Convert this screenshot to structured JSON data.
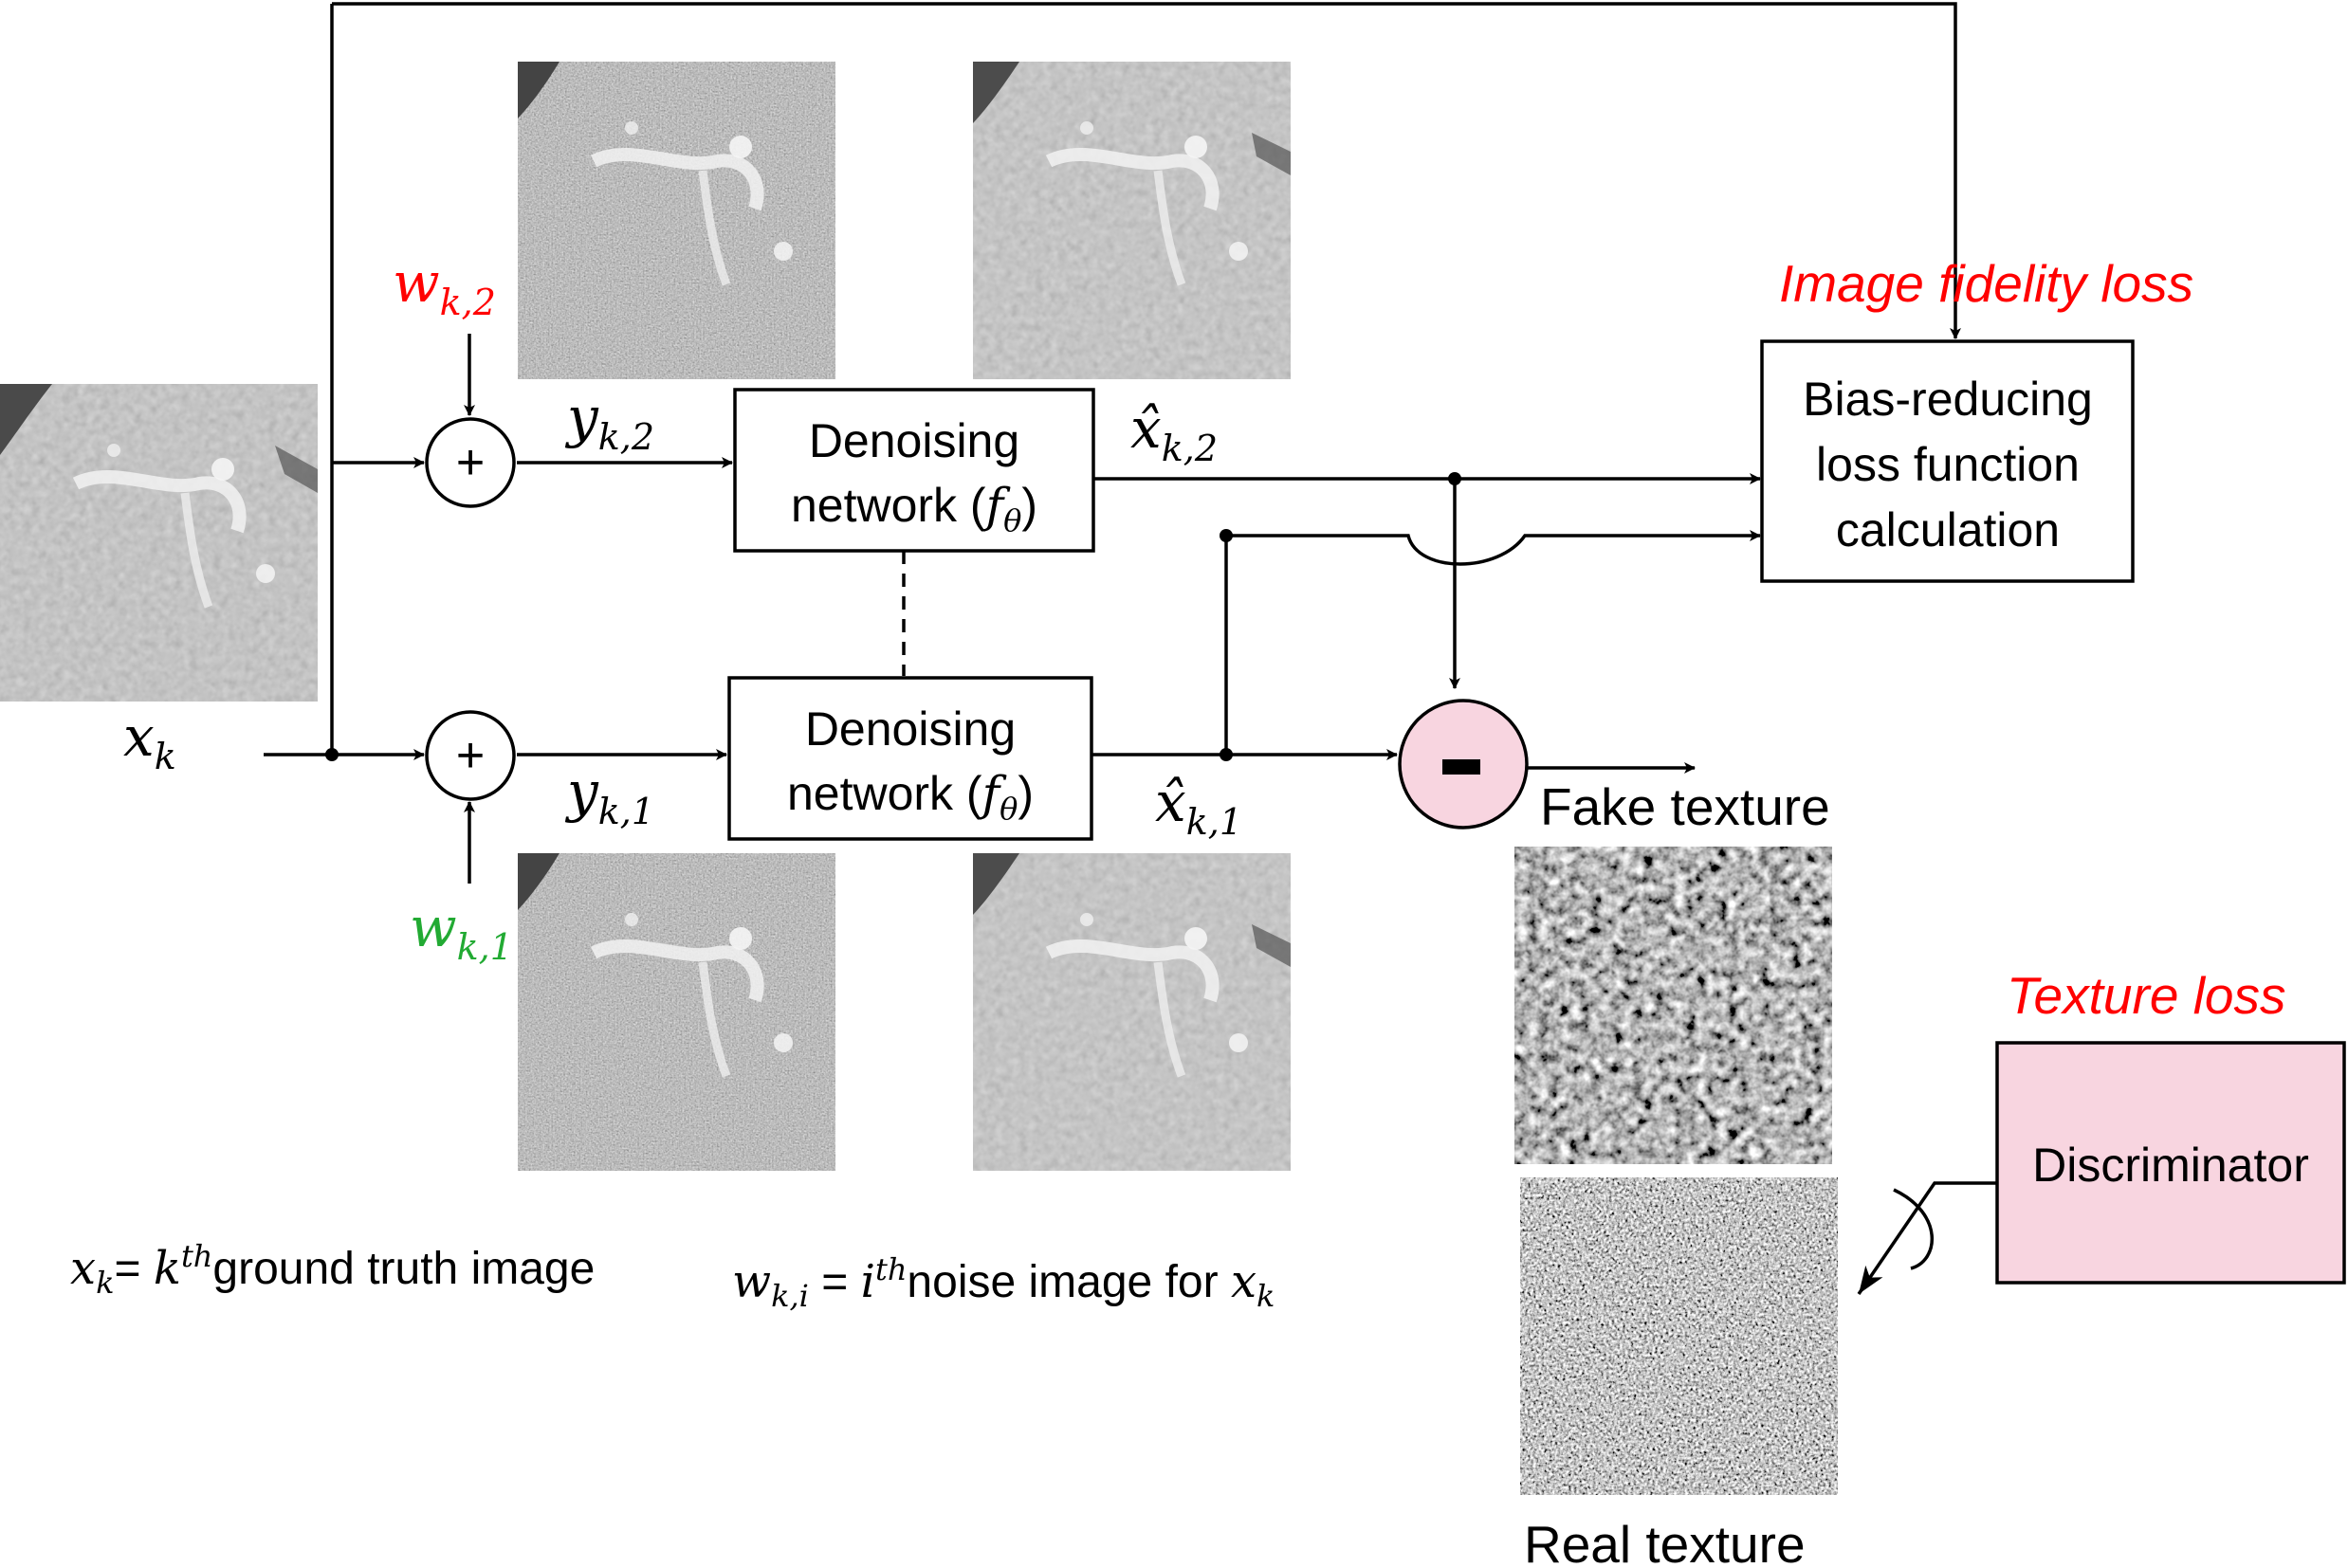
{
  "nodes": {
    "denoise_top": {
      "line1": "Denoising",
      "line2": "network (",
      "fn": "f",
      "fn_sub": "θ",
      "close": ")"
    },
    "denoise_bottom": {
      "line1": "Denoising",
      "line2": "network  (",
      "fn": "f",
      "fn_sub": "θ",
      "close": ")"
    },
    "bias_box": {
      "line1": "Bias-reducing",
      "line2": "loss function",
      "line3": "calculation"
    },
    "discriminator": {
      "label": "Discriminator"
    },
    "minus_symbol": "-",
    "plus_symbol": "+"
  },
  "titles": {
    "image_fidelity_loss": "Image fidelity loss",
    "texture_loss": "Texture loss"
  },
  "labels": {
    "x_k": {
      "base": "x",
      "sub": "k"
    },
    "w_k2": {
      "base": "w",
      "sub": "k,2"
    },
    "w_k1": {
      "base": "w",
      "sub": "k,1"
    },
    "y_k2": {
      "base": "y",
      "sub": "k,2"
    },
    "y_k1": {
      "base": "y",
      "sub": "k,1"
    },
    "xhat_k2": {
      "base": "x̂",
      "sub": "k,2"
    },
    "xhat_k1": {
      "base": "x̂",
      "sub": "k,1"
    },
    "fake_texture": "Fake texture",
    "real_texture": "Real texture"
  },
  "legend": {
    "def1": {
      "sym": "x",
      "sym_sub": "k",
      "eq": "= ",
      "k": "k",
      "th": "th",
      "text": "ground truth image"
    },
    "def2": {
      "sym": "w",
      "sym_sub": "k,i",
      "eq": " = ",
      "i": "i",
      "th": "th",
      "text": "noise image for ",
      "tail": "x",
      "tail_sub": "k"
    }
  },
  "colors": {
    "red_label": "#ff0000",
    "green_label": "#22aa33",
    "pink_fill": "#f8d5e0"
  }
}
